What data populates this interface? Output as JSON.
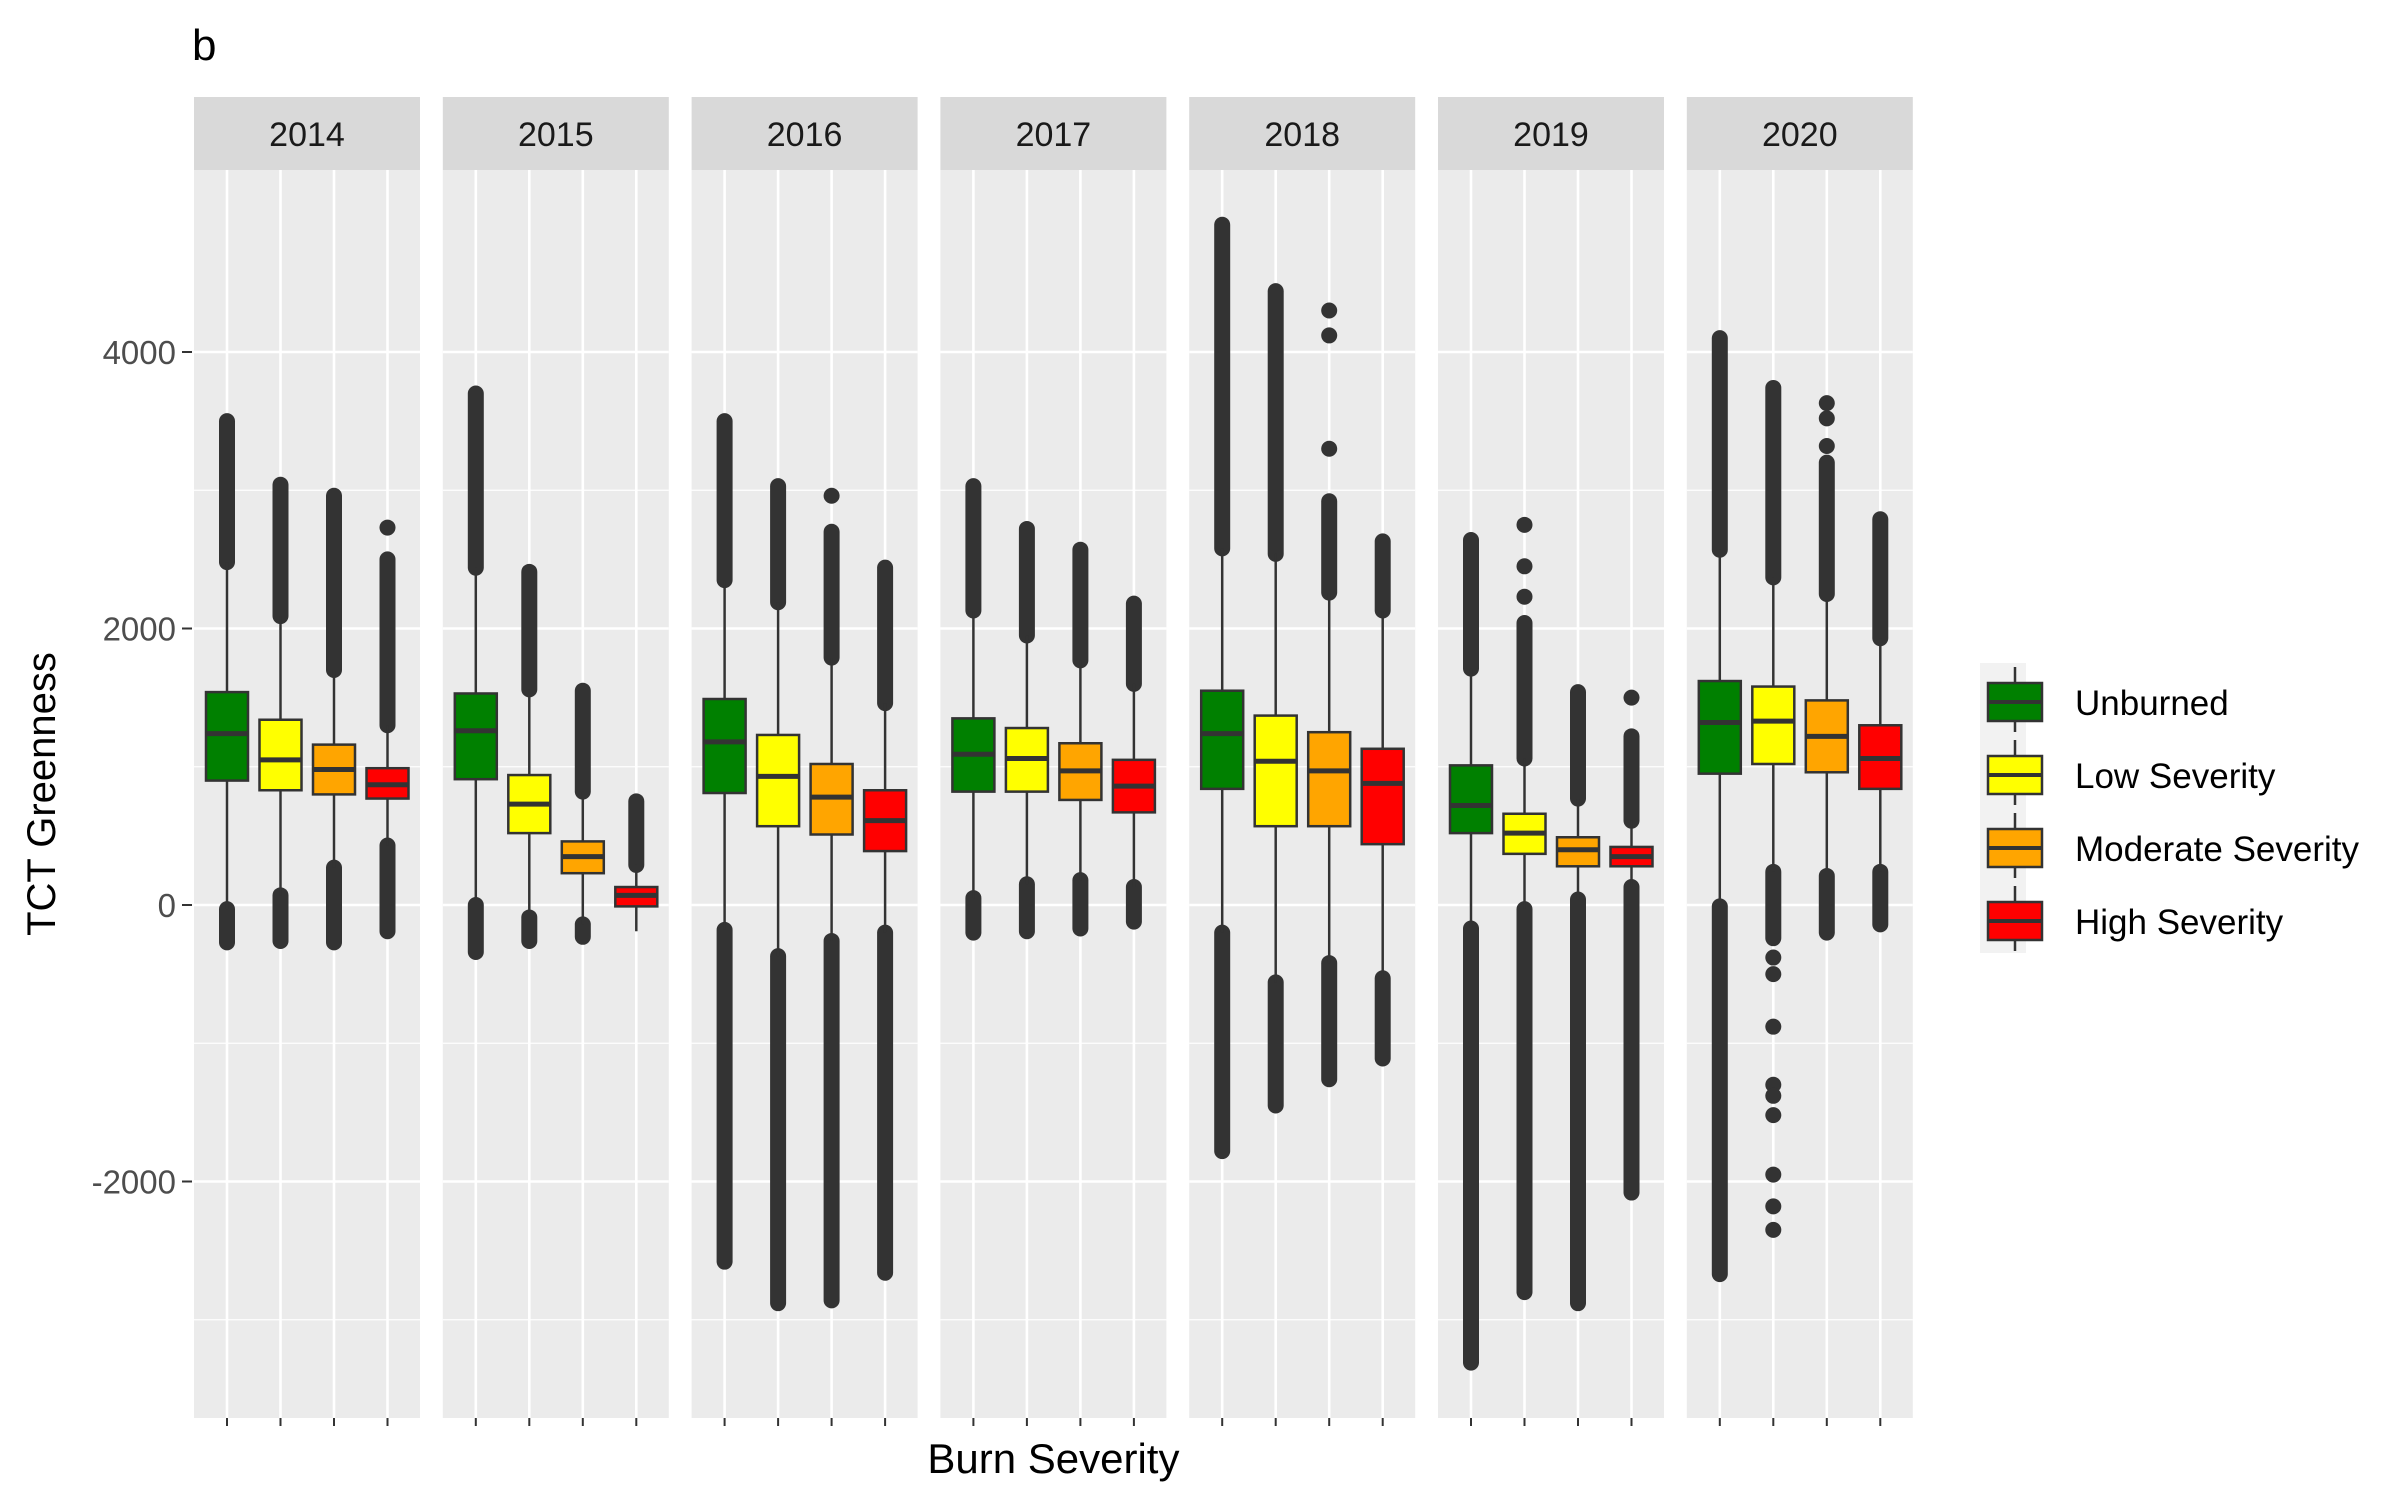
{
  "chart_data": {
    "type": "boxplot",
    "panel_label": "b",
    "title": "",
    "xlabel": "Burn Severity",
    "ylabel": "TCT Greenness",
    "ylim": [
      -3700,
      5000
    ],
    "yticks": [
      -2000,
      0,
      2000,
      4000
    ],
    "ytick_labels": [
      "-2000",
      "0",
      "2000",
      "4000"
    ],
    "grid": true,
    "legend_position": "right",
    "categories": [
      "Unburned",
      "Low Severity",
      "Moderate Severity",
      "High Severity"
    ],
    "colors": {
      "Unburned": "#008000",
      "Low Severity": "#ffff00",
      "Moderate Severity": "#ffa500",
      "High Severity": "#ff0000"
    },
    "legend": {
      "entries": [
        "Unburned",
        "Low Severity",
        "Moderate Severity",
        "High Severity"
      ]
    },
    "facets": [
      {
        "label": "2014",
        "boxes": [
          {
            "category": "Unburned",
            "q1": 900,
            "median": 1240,
            "q3": 1540,
            "whisker_low": -30,
            "whisker_high": 2480,
            "outlier_low_range": [
              -270,
              -30
            ],
            "outlier_high_range": [
              2480,
              3500
            ],
            "isolated_outliers": []
          },
          {
            "category": "Low Severity",
            "q1": 830,
            "median": 1050,
            "q3": 1340,
            "whisker_low": 70,
            "whisker_high": 2090,
            "outlier_low_range": [
              -260,
              70
            ],
            "outlier_high_range": [
              2090,
              3040
            ],
            "isolated_outliers": []
          },
          {
            "category": "Moderate Severity",
            "q1": 800,
            "median": 980,
            "q3": 1160,
            "whisker_low": 270,
            "whisker_high": 1700,
            "outlier_low_range": [
              -270,
              270
            ],
            "outlier_high_range": [
              1700,
              2960
            ],
            "isolated_outliers": []
          },
          {
            "category": "High Severity",
            "q1": 770,
            "median": 870,
            "q3": 990,
            "whisker_low": 430,
            "whisker_high": 1300,
            "outlier_low_range": [
              -190,
              430
            ],
            "outlier_high_range": [
              1300,
              2500
            ],
            "isolated_outliers": [
              2730
            ]
          }
        ]
      },
      {
        "label": "2015",
        "boxes": [
          {
            "category": "Unburned",
            "q1": 910,
            "median": 1260,
            "q3": 1530,
            "whisker_low": 0,
            "whisker_high": 2440,
            "outlier_low_range": [
              -340,
              0
            ],
            "outlier_high_range": [
              2440,
              3700
            ],
            "isolated_outliers": []
          },
          {
            "category": "Low Severity",
            "q1": 520,
            "median": 730,
            "q3": 940,
            "whisker_low": -90,
            "whisker_high": 1560,
            "outlier_low_range": [
              -260,
              -90
            ],
            "outlier_high_range": [
              1560,
              2410
            ],
            "isolated_outliers": []
          },
          {
            "category": "Moderate Severity",
            "q1": 230,
            "median": 350,
            "q3": 460,
            "whisker_low": -140,
            "whisker_high": 820,
            "outlier_low_range": [
              -230,
              -140
            ],
            "outlier_high_range": [
              820,
              1550
            ],
            "isolated_outliers": []
          },
          {
            "category": "High Severity",
            "q1": -10,
            "median": 70,
            "q3": 130,
            "whisker_low": -190,
            "whisker_high": 290,
            "outlier_low_range": [],
            "outlier_high_range": [
              290,
              750
            ],
            "isolated_outliers": []
          }
        ]
      },
      {
        "label": "2016",
        "boxes": [
          {
            "category": "Unburned",
            "q1": 810,
            "median": 1180,
            "q3": 1490,
            "whisker_low": -180,
            "whisker_high": 2350,
            "outlier_low_range": [
              -2580,
              -180
            ],
            "outlier_high_range": [
              2350,
              3500
            ],
            "isolated_outliers": []
          },
          {
            "category": "Low Severity",
            "q1": 570,
            "median": 930,
            "q3": 1230,
            "whisker_low": -370,
            "whisker_high": 2190,
            "outlier_low_range": [
              -2880,
              -370
            ],
            "outlier_high_range": [
              2190,
              3030
            ],
            "isolated_outliers": []
          },
          {
            "category": "Moderate Severity",
            "q1": 510,
            "median": 780,
            "q3": 1020,
            "whisker_low": -260,
            "whisker_high": 1790,
            "outlier_low_range": [
              -2860,
              -260
            ],
            "outlier_high_range": [
              1790,
              2700
            ],
            "isolated_outliers": [
              2960
            ]
          },
          {
            "category": "High Severity",
            "q1": 390,
            "median": 610,
            "q3": 830,
            "whisker_low": -200,
            "whisker_high": 1460,
            "outlier_low_range": [
              -2660,
              -200
            ],
            "outlier_high_range": [
              1460,
              2440
            ],
            "isolated_outliers": []
          }
        ]
      },
      {
        "label": "2017",
        "boxes": [
          {
            "category": "Unburned",
            "q1": 820,
            "median": 1090,
            "q3": 1350,
            "whisker_low": 50,
            "whisker_high": 2130,
            "outlier_low_range": [
              -200,
              50
            ],
            "outlier_high_range": [
              2130,
              3030
            ],
            "isolated_outliers": []
          },
          {
            "category": "Low Severity",
            "q1": 820,
            "median": 1060,
            "q3": 1280,
            "whisker_low": 150,
            "whisker_high": 1950,
            "outlier_low_range": [
              -190,
              150
            ],
            "outlier_high_range": [
              1950,
              2720
            ],
            "isolated_outliers": []
          },
          {
            "category": "Moderate Severity",
            "q1": 760,
            "median": 970,
            "q3": 1170,
            "whisker_low": 180,
            "whisker_high": 1770,
            "outlier_low_range": [
              -170,
              180
            ],
            "outlier_high_range": [
              1770,
              2570
            ],
            "isolated_outliers": []
          },
          {
            "category": "High Severity",
            "q1": 670,
            "median": 860,
            "q3": 1050,
            "whisker_low": 130,
            "whisker_high": 1600,
            "outlier_low_range": [
              -120,
              130
            ],
            "outlier_high_range": [
              1600,
              2180
            ],
            "isolated_outliers": []
          }
        ]
      },
      {
        "label": "2018",
        "boxes": [
          {
            "category": "Unburned",
            "q1": 840,
            "median": 1240,
            "q3": 1550,
            "whisker_low": -200,
            "whisker_high": 2580,
            "outlier_low_range": [
              -1780,
              -200
            ],
            "outlier_high_range": [
              2580,
              4920
            ],
            "isolated_outliers": []
          },
          {
            "category": "Low Severity",
            "q1": 570,
            "median": 1040,
            "q3": 1370,
            "whisker_low": -560,
            "whisker_high": 2540,
            "outlier_low_range": [
              -1450,
              -560
            ],
            "outlier_high_range": [
              2540,
              4440
            ],
            "isolated_outliers": []
          },
          {
            "category": "Moderate Severity",
            "q1": 570,
            "median": 970,
            "q3": 1250,
            "whisker_low": -420,
            "whisker_high": 2260,
            "outlier_low_range": [
              -1260,
              -420
            ],
            "outlier_high_range": [
              2260,
              2920
            ],
            "isolated_outliers": [
              3300,
              4120,
              4300
            ]
          },
          {
            "category": "High Severity",
            "q1": 440,
            "median": 880,
            "q3": 1130,
            "whisker_low": -530,
            "whisker_high": 2130,
            "outlier_low_range": [
              -1110,
              -530
            ],
            "outlier_high_range": [
              2130,
              2630
            ],
            "isolated_outliers": []
          }
        ]
      },
      {
        "label": "2019",
        "boxes": [
          {
            "category": "Unburned",
            "q1": 520,
            "median": 720,
            "q3": 1010,
            "whisker_low": -170,
            "whisker_high": 1710,
            "outlier_low_range": [
              -3310,
              -170
            ],
            "outlier_high_range": [
              1710,
              2640
            ],
            "isolated_outliers": []
          },
          {
            "category": "Low Severity",
            "q1": 370,
            "median": 520,
            "q3": 660,
            "whisker_low": -30,
            "whisker_high": 1060,
            "outlier_low_range": [
              -2800,
              -30
            ],
            "outlier_high_range": [
              1060,
              2040
            ],
            "isolated_outliers": [
              2230,
              2450,
              2750
            ]
          },
          {
            "category": "Moderate Severity",
            "q1": 280,
            "median": 400,
            "q3": 490,
            "whisker_low": 40,
            "whisker_high": 770,
            "outlier_low_range": [
              -2880,
              40
            ],
            "outlier_high_range": [
              770,
              1540
            ],
            "isolated_outliers": []
          },
          {
            "category": "High Severity",
            "q1": 280,
            "median": 350,
            "q3": 420,
            "whisker_low": 130,
            "whisker_high": 610,
            "outlier_low_range": [
              -2080,
              130
            ],
            "outlier_high_range": [
              610,
              1220
            ],
            "isolated_outliers": [
              1500
            ]
          }
        ]
      },
      {
        "label": "2020",
        "boxes": [
          {
            "category": "Unburned",
            "q1": 950,
            "median": 1320,
            "q3": 1620,
            "whisker_low": -10,
            "whisker_high": 2570,
            "outlier_low_range": [
              -2670,
              -10
            ],
            "outlier_high_range": [
              2570,
              4100
            ],
            "isolated_outliers": []
          },
          {
            "category": "Low Severity",
            "q1": 1020,
            "median": 1330,
            "q3": 1580,
            "whisker_low": 240,
            "whisker_high": 2370,
            "outlier_low_range": [
              -240,
              240
            ],
            "outlier_high_range": [
              2370,
              3740
            ],
            "isolated_outliers": [
              -380,
              -500,
              -880,
              -1300,
              -1380,
              -1520,
              -1950,
              -2180,
              -2350
            ]
          },
          {
            "category": "Moderate Severity",
            "q1": 960,
            "median": 1220,
            "q3": 1480,
            "whisker_low": 210,
            "whisker_high": 2250,
            "outlier_low_range": [
              -200,
              210
            ],
            "outlier_high_range": [
              2250,
              3200
            ],
            "isolated_outliers": [
              3320,
              3520,
              3630
            ]
          },
          {
            "category": "High Severity",
            "q1": 840,
            "median": 1060,
            "q3": 1300,
            "whisker_low": 240,
            "whisker_high": 1930,
            "outlier_low_range": [
              -140,
              240
            ],
            "outlier_high_range": [
              1930,
              2790
            ],
            "isolated_outliers": []
          }
        ]
      }
    ]
  }
}
